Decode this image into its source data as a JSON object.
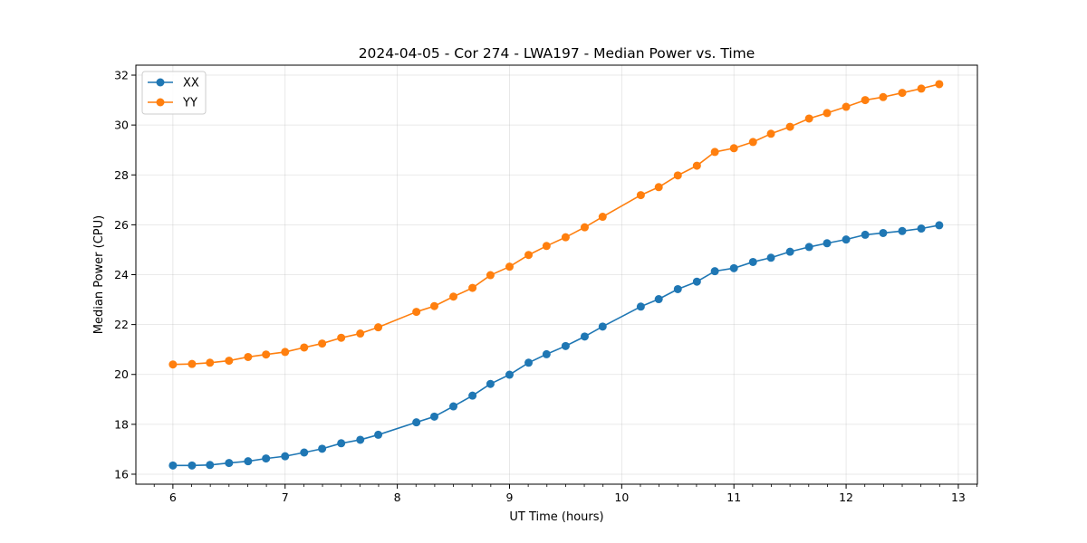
{
  "chart_data": {
    "type": "line",
    "title": "2024-04-05 - Cor 274 - LWA197 - Median Power vs. Time",
    "xlabel": "UT Time (hours)",
    "ylabel": "Median Power (CPU)",
    "xlim": [
      5.67,
      13.17
    ],
    "ylim": [
      15.6,
      32.4
    ],
    "xticks": [
      6,
      7,
      8,
      9,
      10,
      11,
      12,
      13
    ],
    "yticks": [
      16,
      18,
      20,
      22,
      24,
      26,
      28,
      30,
      32
    ],
    "grid": true,
    "legend_position": "top-left",
    "x": [
      6.0,
      6.17,
      6.33,
      6.5,
      6.67,
      6.83,
      7.0,
      7.17,
      7.33,
      7.5,
      7.67,
      7.83,
      8.17,
      8.33,
      8.5,
      8.67,
      8.83,
      9.0,
      9.17,
      9.33,
      9.5,
      9.67,
      9.83,
      10.17,
      10.33,
      10.5,
      10.67,
      10.83,
      11.0,
      11.17,
      11.33,
      11.5,
      11.67,
      11.83,
      12.0,
      12.17,
      12.33,
      12.5,
      12.67,
      12.83
    ],
    "series": [
      {
        "name": "XX",
        "color": "#1f77b4",
        "values": [
          16.35,
          16.35,
          16.37,
          16.45,
          16.52,
          16.63,
          16.72,
          16.87,
          17.02,
          17.24,
          17.38,
          17.58,
          18.08,
          18.31,
          18.72,
          19.15,
          19.62,
          19.99,
          20.47,
          20.81,
          21.14,
          21.52,
          21.92,
          22.72,
          23.02,
          23.42,
          23.72,
          24.14,
          24.26,
          24.51,
          24.68,
          24.92,
          25.11,
          25.26,
          25.41,
          25.6,
          25.67,
          25.75,
          25.85,
          25.98
        ]
      },
      {
        "name": "YY",
        "color": "#ff7f0e",
        "values": [
          20.4,
          20.42,
          20.47,
          20.55,
          20.7,
          20.8,
          20.9,
          21.08,
          21.24,
          21.47,
          21.64,
          21.89,
          22.51,
          22.74,
          23.12,
          23.47,
          23.98,
          24.32,
          24.79,
          25.15,
          25.5,
          25.9,
          26.32,
          27.19,
          27.51,
          27.98,
          28.37,
          28.92,
          29.07,
          29.32,
          29.65,
          29.93,
          30.26,
          30.48,
          30.73,
          31.0,
          31.12,
          31.29,
          31.46,
          31.64
        ]
      }
    ]
  }
}
